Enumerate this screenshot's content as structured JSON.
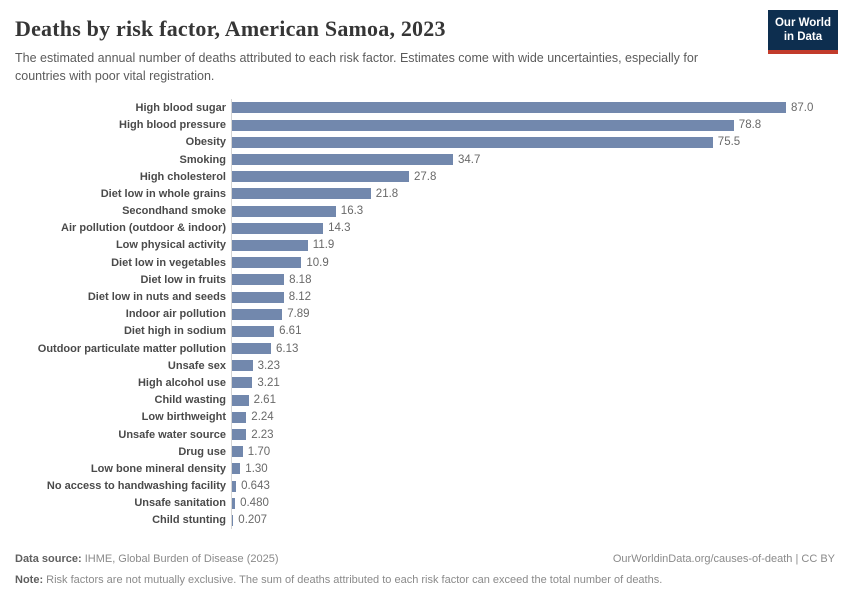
{
  "header": {
    "title": "Deaths by risk factor, American Samoa, 2023",
    "subtitle": "The estimated annual number of deaths attributed to each risk factor. Estimates come with wide uncertainties, especially for countries with poor vital registration.",
    "logo_line1": "Our World",
    "logo_line2": "in Data"
  },
  "chart_data": {
    "type": "bar",
    "orientation": "horizontal",
    "title": "Deaths by risk factor, American Samoa, 2023",
    "xlabel": "",
    "ylabel": "",
    "xlim": [
      0,
      87
    ],
    "grid": false,
    "legend": false,
    "bar_color": "#7288ad",
    "categories": [
      "High blood sugar",
      "High blood pressure",
      "Obesity",
      "Smoking",
      "High cholesterol",
      "Diet low in whole grains",
      "Secondhand smoke",
      "Air pollution (outdoor & indoor)",
      "Low physical activity",
      "Diet low in vegetables",
      "Diet low in fruits",
      "Diet low in nuts and seeds",
      "Indoor air pollution",
      "Diet high in sodium",
      "Outdoor particulate matter pollution",
      "Unsafe sex",
      "High alcohol use",
      "Child wasting",
      "Low birthweight",
      "Unsafe water source",
      "Drug use",
      "Low bone mineral density",
      "No access to handwashing facility",
      "Unsafe sanitation",
      "Child stunting"
    ],
    "values": [
      87.0,
      78.8,
      75.5,
      34.7,
      27.8,
      21.8,
      16.3,
      14.3,
      11.9,
      10.9,
      8.18,
      8.12,
      7.89,
      6.61,
      6.13,
      3.23,
      3.21,
      2.61,
      2.24,
      2.23,
      1.7,
      1.3,
      0.643,
      0.48,
      0.207
    ],
    "value_labels": [
      "87.0",
      "78.8",
      "75.5",
      "34.7",
      "27.8",
      "21.8",
      "16.3",
      "14.3",
      "11.9",
      "10.9",
      "8.18",
      "8.12",
      "7.89",
      "6.61",
      "6.13",
      "3.23",
      "3.21",
      "2.61",
      "2.24",
      "2.23",
      "1.70",
      "1.30",
      "0.643",
      "0.480",
      "0.207"
    ]
  },
  "footer": {
    "datasource_label": "Data source:",
    "datasource_text": " IHME, Global Burden of Disease (2025)",
    "link": "OurWorldinData.org/causes-of-death | CC BY",
    "note_label": "Note:",
    "note_text": " Risk factors are not mutually exclusive. The sum of deaths attributed to each risk factor can exceed the total number of deaths."
  }
}
